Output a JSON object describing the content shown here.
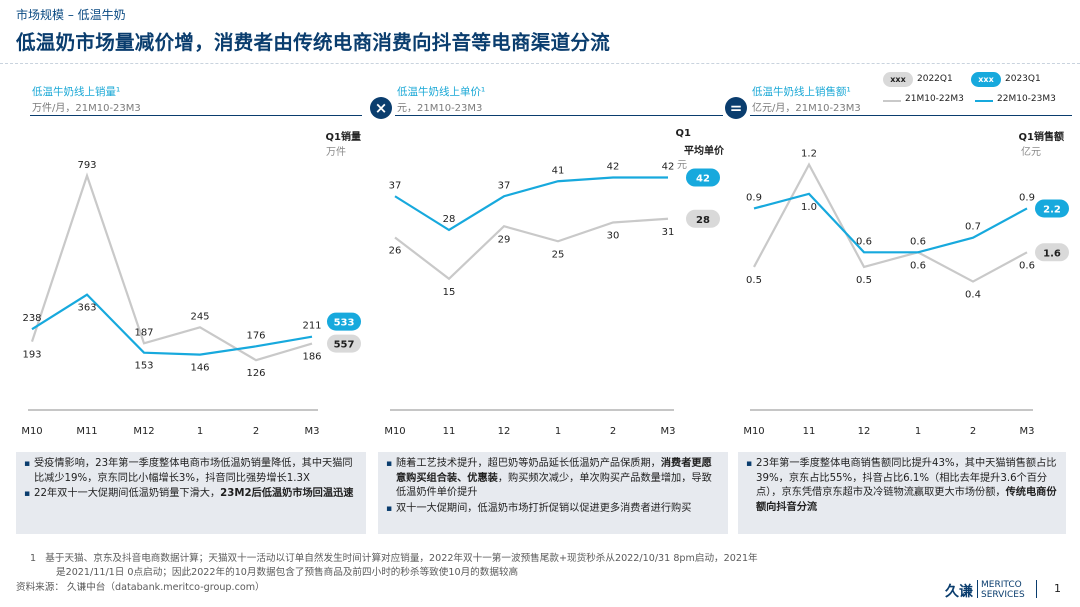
{
  "header": {
    "breadcrumb": "市场规模 – 低温牛奶",
    "title": "低温奶市场量减价增，消费者由传统电商消费向抖音等电商渠道分流"
  },
  "legend": {
    "badge_text": "xxx",
    "q1_2022": "2022Q1",
    "q1_2023": "2023Q1",
    "series_2022": "21M10-22M3",
    "series_2023": "22M10-23M3"
  },
  "operators": {
    "multiply": "×",
    "equals": "="
  },
  "colors": {
    "blue": "#17a9dd",
    "gray": "#c9c9c9",
    "navy": "#0a3d6e"
  },
  "panels": [
    {
      "title": "低温牛奶线上销量¹",
      "subtitle": "万件/月，21M10-23M3",
      "q1_label": "Q1销量",
      "q1_unit": "万件"
    },
    {
      "title": "低温牛奶线上单价¹",
      "subtitle": "元，21M10-23M3",
      "q1_label": "Q1",
      "q1_label2": "平均单价",
      "q1_unit": "元"
    },
    {
      "title": "低温牛奶线上销售额¹",
      "subtitle": "亿元/月，21M10-23M3",
      "q1_label": "Q1销售额",
      "q1_unit": "亿元"
    }
  ],
  "chart_data": [
    {
      "type": "line",
      "title": "低温牛奶线上销量",
      "categories": [
        "M10",
        "M11",
        "M12",
        "1",
        "2",
        "M3"
      ],
      "series": [
        {
          "name": "21M10-22M3",
          "values": [
            193,
            793,
            187,
            245,
            126,
            186
          ],
          "q1_total": "557"
        },
        {
          "name": "22M10-23M3",
          "values": [
            238,
            363,
            153,
            146,
            176,
            211
          ],
          "q1_total": "533"
        }
      ],
      "labels": {
        "gray": [
          "193",
          "793",
          "187",
          "245",
          "126",
          "186"
        ],
        "blue": [
          "238",
          "363",
          "153",
          "146",
          "176",
          "211"
        ]
      },
      "ylim": [
        0,
        850
      ]
    },
    {
      "type": "line",
      "title": "低温牛奶线上单价",
      "categories": [
        "M10",
        "11",
        "12",
        "1",
        "2",
        "M3"
      ],
      "series": [
        {
          "name": "21M10-22M3",
          "values": [
            26,
            15,
            29,
            25,
            30,
            31
          ],
          "q1_total": "28"
        },
        {
          "name": "22M10-23M3",
          "values": [
            37,
            28,
            37,
            41,
            42,
            42
          ],
          "q1_total": "42"
        }
      ],
      "labels": {
        "gray": [
          "26",
          "15",
          "29",
          "25",
          "30",
          "31"
        ],
        "blue": [
          "37",
          "28",
          "37",
          "41",
          "42",
          "42"
        ]
      },
      "ylim": [
        0,
        48
      ]
    },
    {
      "type": "line",
      "title": "低温牛奶线上销售额",
      "categories": [
        "M10",
        "11",
        "12",
        "1",
        "2",
        "M3"
      ],
      "series": [
        {
          "name": "21M10-22M3",
          "values": [
            0.5,
            1.2,
            0.5,
            0.6,
            0.4,
            0.6
          ],
          "q1_total": "1.6"
        },
        {
          "name": "22M10-23M3",
          "values": [
            0.9,
            1.0,
            0.6,
            0.6,
            0.7,
            0.9
          ],
          "q1_total": "2.2"
        }
      ],
      "labels": {
        "gray": [
          "0.5",
          "1.2",
          "0.5",
          "0.6",
          "0.4",
          "0.6"
        ],
        "blue": [
          "0.9",
          "1.0",
          "0.6",
          "0.6",
          "0.7",
          "0.9"
        ]
      },
      "ylim": [
        0,
        1.3
      ]
    }
  ],
  "bullets": [
    [
      {
        "text": "受疫情影响，23年第一季度整体电商市场低温奶销量降低，其中天猫同比减少19%，京东同比小幅增长3%，抖音同比强势增长1.3X",
        "bold": ""
      },
      {
        "text": "22年双十一大促期间低温奶销量下滑大，",
        "bold": "23M2后低温奶市场回温迅速"
      }
    ],
    [
      {
        "pre": "随着工艺技术提升，超巴奶等奶品延长低温奶产品保质期，",
        "bold": "消费者更愿意购买组合装、优惠装",
        "post": "，购买频次减少，单次购买产品数量增加，导致低温奶件单价提升"
      },
      {
        "pre": "双十一大促期间，低温奶市场打折促销以促进更多消费者进行购买",
        "bold": "",
        "post": ""
      }
    ],
    [
      {
        "pre": "23年第一季度整体电商销售额同比提升43%，其中天猫销售额占比39%，京东占比55%，抖音占比6.1%（相比去年提升3.6个百分点），京东凭借京东超市及冷链物流赢取更大市场份额，",
        "bold": "传统电商份额向抖音分流",
        "post": ""
      }
    ]
  ],
  "footer": {
    "footnote_num": "1",
    "footnote_line1": "基于天猫、京东及抖音电商数据计算；天猫双十一活动以订单自然发生时间计算对应销量，2022年双十一第一波预售尾款+现货秒杀从2022/10/31 8pm启动，2021年",
    "footnote_line2": "是2021/11/1日 0点启动；因此2022年的10月数据包含了预售商品及前四小时的秒杀等致使10月的数据较高",
    "source": "资料来源：  久谦中台（databank.meritco-group.com）",
    "logo_cn": "久谦",
    "logo_en1": "MERITCO",
    "logo_en2": "SERVICES",
    "page_number": "1"
  }
}
